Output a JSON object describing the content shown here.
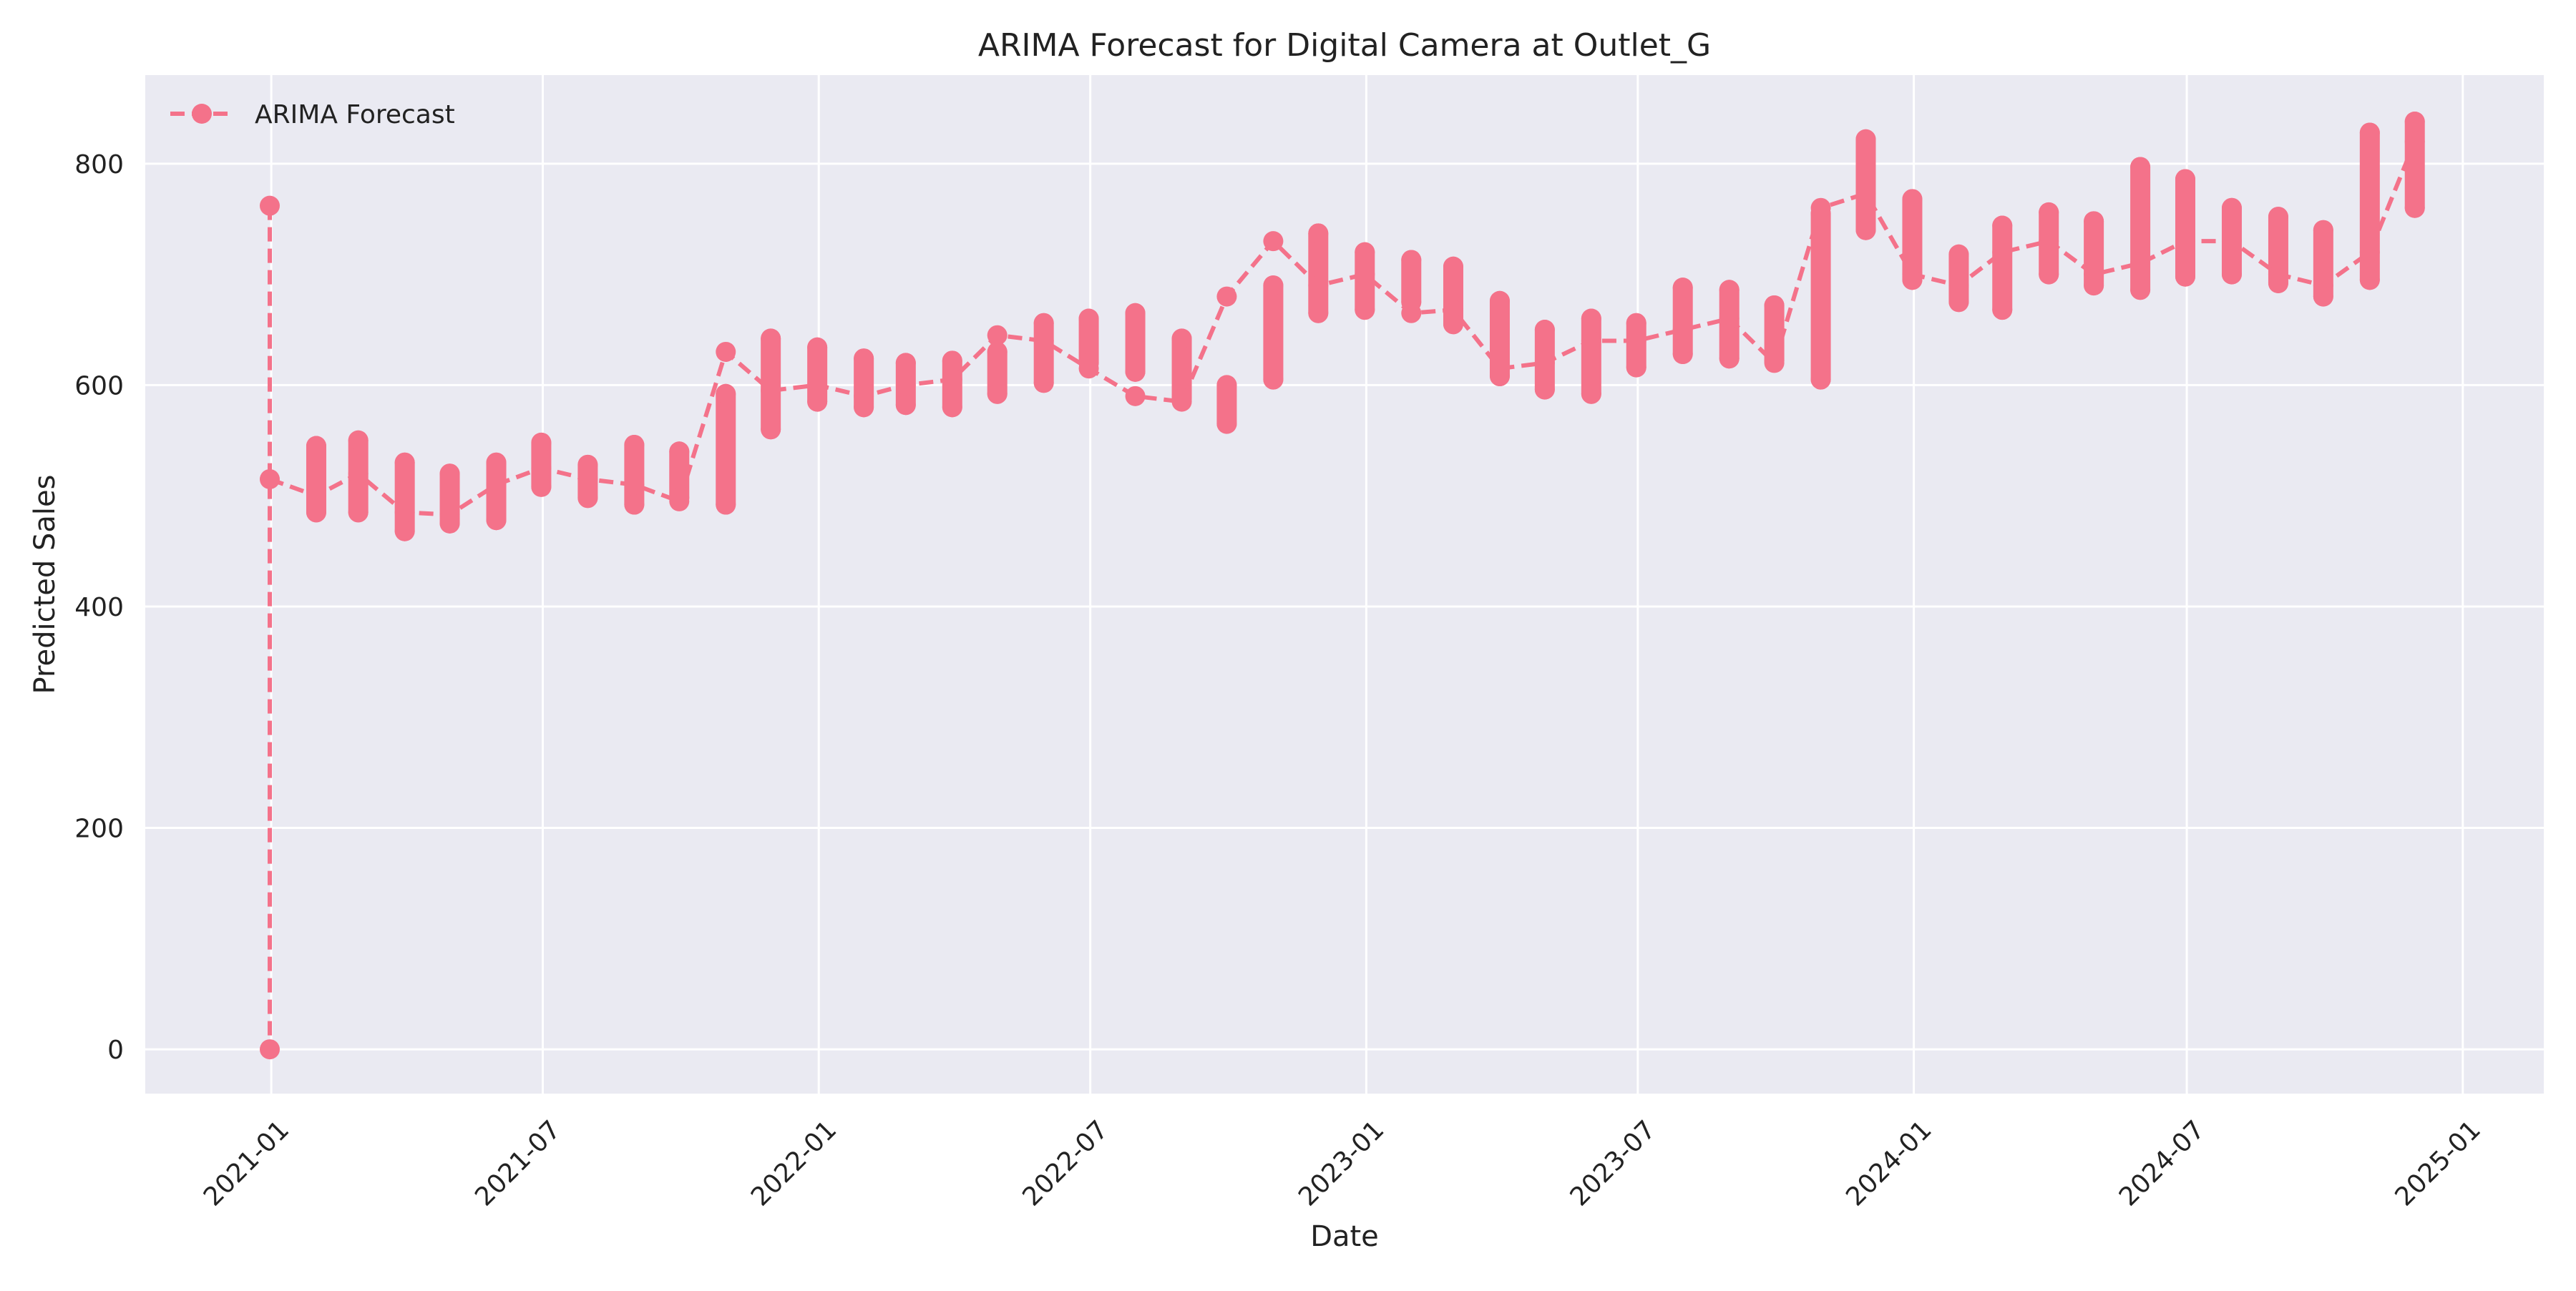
{
  "chart_data": {
    "type": "line",
    "title": "ARIMA Forecast for Digital Camera at Outlet_G",
    "xlabel": "Date",
    "ylabel": "Predicted Sales",
    "x_ticks": [
      "2021-01",
      "2021-07",
      "2022-01",
      "2022-07",
      "2023-01",
      "2023-07",
      "2024-01",
      "2024-07",
      "2025-01"
    ],
    "y_ticks": [
      0,
      200,
      400,
      600,
      800
    ],
    "xlim": [
      "2020-10-09",
      "2025-02-24"
    ],
    "ylim": [
      -40,
      880
    ],
    "grid": true,
    "legend_position": "top-left",
    "colors": {
      "series": "#f4728a",
      "plot_bg": "#eaeaf2",
      "grid": "#ffffff"
    },
    "series": [
      {
        "name": "ARIMA Forecast",
        "line_style": "dashed",
        "marker": "circle",
        "x": [
          "2020-12-31",
          "2021-01-31",
          "2021-02-28",
          "2021-03-31",
          "2021-04-30",
          "2021-05-31",
          "2021-06-30",
          "2021-07-31",
          "2021-08-31",
          "2021-09-30",
          "2021-10-31",
          "2021-11-30",
          "2021-12-31",
          "2022-01-31",
          "2022-02-28",
          "2022-03-31",
          "2022-04-30",
          "2022-05-31",
          "2022-06-30",
          "2022-07-31",
          "2022-08-31",
          "2022-09-30",
          "2022-10-31",
          "2022-11-30",
          "2022-12-31",
          "2023-01-31",
          "2023-02-28",
          "2023-03-31",
          "2023-04-30",
          "2023-05-31",
          "2023-06-30",
          "2023-07-31",
          "2023-08-31",
          "2023-09-30",
          "2023-10-31",
          "2023-11-30",
          "2023-12-31",
          "2024-01-31",
          "2024-02-29",
          "2024-03-31",
          "2024-04-30",
          "2024-05-31",
          "2024-06-30",
          "2024-07-31",
          "2024-08-31",
          "2024-09-30",
          "2024-10-31",
          "2024-11-30"
        ],
        "values": [
          515,
          500,
          520,
          485,
          483,
          510,
          525,
          515,
          510,
          495,
          630,
          595,
          600,
          590,
          600,
          605,
          645,
          640,
          615,
          590,
          585,
          680,
          730,
          690,
          700,
          665,
          668,
          615,
          620,
          640,
          640,
          650,
          660,
          620,
          760,
          773,
          700,
          690,
          720,
          730,
          700,
          710,
          730,
          730,
          700,
          690,
          720,
          820
        ],
        "min": [
          0,
          485,
          485,
          468,
          475,
          478,
          508,
          498,
          492,
          498,
          492,
          560,
          585,
          580,
          582,
          580,
          592,
          602,
          620,
          612,
          588,
          565,
          605,
          665,
          668,
          675,
          655,
          608,
          596,
          592,
          616,
          628,
          624,
          622,
          605,
          740,
          695,
          675,
          668,
          700,
          690,
          686,
          698,
          700,
          692,
          680,
          695,
          760
        ],
        "max": [
          762,
          545,
          550,
          530,
          520,
          530,
          548,
          528,
          546,
          540,
          592,
          642,
          634,
          624,
          620,
          622,
          630,
          656,
          660,
          665,
          642,
          600,
          690,
          737,
          720,
          713,
          707,
          676,
          650,
          660,
          656,
          688,
          686,
          672,
          755,
          822,
          768,
          718,
          744,
          756,
          748,
          797,
          786,
          760,
          752,
          740,
          828,
          838
        ]
      }
    ]
  }
}
